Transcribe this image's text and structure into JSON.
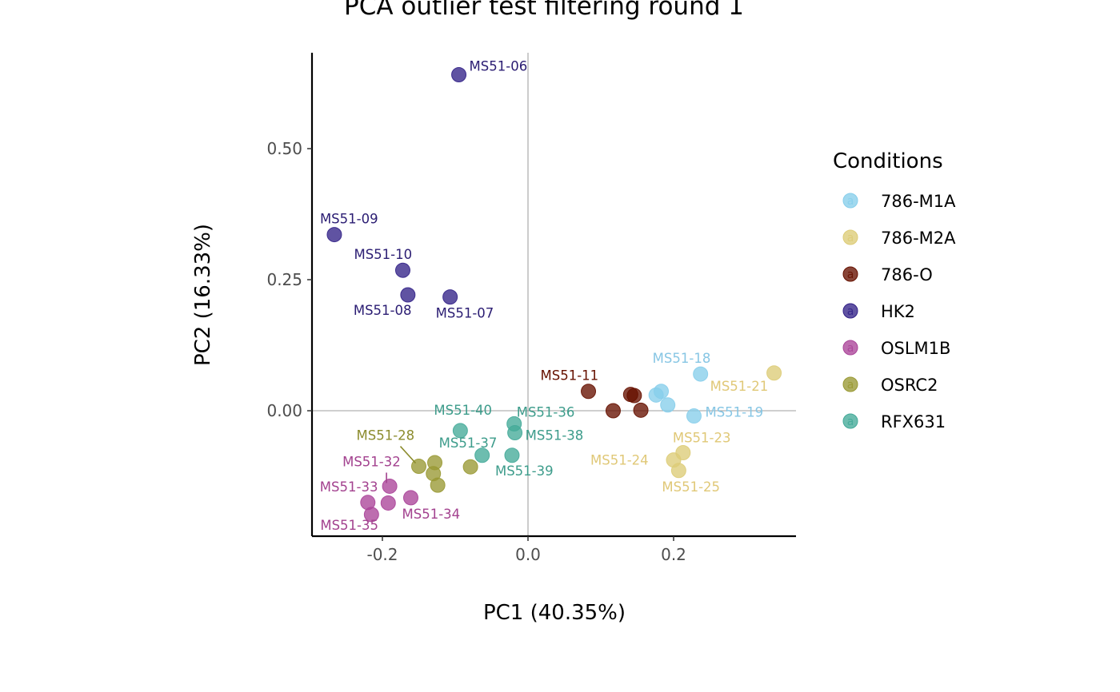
{
  "chart_data": {
    "type": "scatter",
    "title": "PCA outlier test filtering round  1",
    "xlabel": "PC1 (40.35%)",
    "ylabel": "PC2 (16.33%)",
    "xlim": [
      -0.295,
      0.37
    ],
    "ylim": [
      -0.24,
      0.68
    ],
    "x_ticks": [
      -0.2,
      0.0,
      0.2
    ],
    "x_tick_labels": [
      "-0.2",
      "0.0",
      "0.2"
    ],
    "y_ticks": [
      0.0,
      0.25,
      0.5
    ],
    "y_tick_labels": [
      "0.00",
      "0.25",
      "0.50"
    ],
    "grid": false,
    "reference_lines": {
      "x": 0,
      "y": 0
    },
    "legend": {
      "title": "Conditions",
      "position": "right",
      "key_glyph": "a"
    },
    "series": [
      {
        "name": "786-M1A",
        "color": "#87ceeb",
        "label_color": "#87c6e4",
        "points": [
          {
            "x": 0.237,
            "y": 0.07,
            "label": "MS51-18"
          },
          {
            "x": 0.183,
            "y": 0.037,
            "label": ""
          },
          {
            "x": 0.176,
            "y": 0.03,
            "label": ""
          },
          {
            "x": 0.192,
            "y": 0.011,
            "label": ""
          },
          {
            "x": 0.228,
            "y": -0.01,
            "label": "MS51-19"
          }
        ]
      },
      {
        "name": "786-M2A",
        "color": "#ddcc77",
        "label_color": "#e0c877",
        "points": [
          {
            "x": 0.338,
            "y": 0.072,
            "label": "MS51-21"
          },
          {
            "x": 0.213,
            "y": -0.08,
            "label": "MS51-23"
          },
          {
            "x": 0.2,
            "y": -0.094,
            "label": "MS51-24"
          },
          {
            "x": 0.207,
            "y": -0.114,
            "label": "MS51-25"
          }
        ]
      },
      {
        "name": "786-O",
        "color": "#661100",
        "label_color": "#661100",
        "points": [
          {
            "x": 0.083,
            "y": 0.037,
            "label": "MS51-11"
          },
          {
            "x": 0.141,
            "y": 0.031,
            "label": ""
          },
          {
            "x": 0.146,
            "y": 0.029,
            "label": ""
          },
          {
            "x": 0.117,
            "y": 0.0,
            "label": ""
          },
          {
            "x": 0.155,
            "y": 0.001,
            "label": ""
          }
        ]
      },
      {
        "name": "HK2",
        "color": "#332288",
        "label_color": "#2b1d73",
        "points": [
          {
            "x": -0.095,
            "y": 0.641,
            "label": "MS51-06"
          },
          {
            "x": -0.266,
            "y": 0.336,
            "label": "MS51-09"
          },
          {
            "x": -0.172,
            "y": 0.268,
            "label": "MS51-10"
          },
          {
            "x": -0.165,
            "y": 0.221,
            "label": "MS51-08"
          },
          {
            "x": -0.107,
            "y": 0.217,
            "label": "MS51-07"
          }
        ]
      },
      {
        "name": "OSLM1B",
        "color": "#aa4499",
        "label_color": "#a3428f",
        "points": [
          {
            "x": -0.19,
            "y": -0.144,
            "label": "MS51-32"
          },
          {
            "x": -0.22,
            "y": -0.175,
            "label": "MS51-33"
          },
          {
            "x": -0.192,
            "y": -0.176,
            "label": ""
          },
          {
            "x": -0.161,
            "y": -0.166,
            "label": "MS51-34"
          },
          {
            "x": -0.215,
            "y": -0.198,
            "label": "MS51-35"
          }
        ]
      },
      {
        "name": "OSRC2",
        "color": "#999933",
        "label_color": "#8c8c2e",
        "points": [
          {
            "x": -0.15,
            "y": -0.106,
            "label": "MS51-28"
          },
          {
            "x": -0.128,
            "y": -0.099,
            "label": ""
          },
          {
            "x": -0.13,
            "y": -0.12,
            "label": ""
          },
          {
            "x": -0.124,
            "y": -0.142,
            "label": ""
          },
          {
            "x": -0.079,
            "y": -0.107,
            "label": ""
          }
        ]
      },
      {
        "name": "RFX631",
        "color": "#44aa99",
        "label_color": "#3d9c8b",
        "points": [
          {
            "x": -0.093,
            "y": -0.038,
            "label": "MS51-40"
          },
          {
            "x": -0.019,
            "y": -0.025,
            "label": "MS51-36"
          },
          {
            "x": -0.018,
            "y": -0.042,
            "label": "MS51-38"
          },
          {
            "x": -0.063,
            "y": -0.085,
            "label": "MS51-37"
          },
          {
            "x": -0.022,
            "y": -0.085,
            "label": "MS51-39"
          }
        ]
      }
    ]
  }
}
